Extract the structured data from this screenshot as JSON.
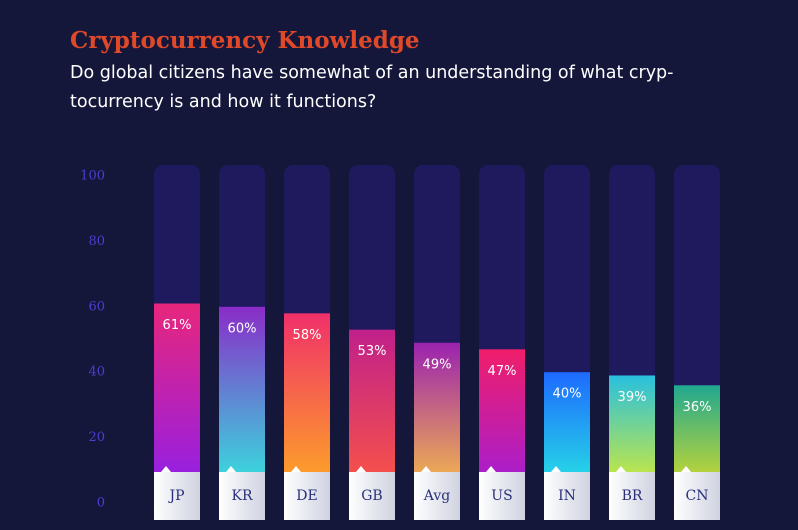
{
  "chart_data": {
    "type": "bar",
    "title": "Cryptocurrency Knowledge",
    "subtitle": [
      "Do global citizens have somewhat of an understanding of what cryp-",
      "tocurrency is and how it functions?"
    ],
    "categories": [
      "JP",
      "KR",
      "DE",
      "GB",
      "Avg",
      "US",
      "IN",
      "BR",
      "CN"
    ],
    "values": [
      61,
      60,
      58,
      53,
      49,
      47,
      40,
      39,
      36
    ],
    "value_labels": [
      "61%",
      "60%",
      "58%",
      "53%",
      "49%",
      "47%",
      "40%",
      "39%",
      "36%"
    ],
    "colors": [
      [
        "#e8267c",
        "#8a1ef0"
      ],
      [
        "#8a2cc8",
        "#2ef0e0"
      ],
      [
        "#f0306a",
        "#ffb020"
      ],
      [
        "#c0208a",
        "#ff5a40"
      ],
      [
        "#9a22b0",
        "#ffc840"
      ],
      [
        "#f01e6a",
        "#9a1ee0"
      ],
      [
        "#1e6aff",
        "#28f0e0"
      ],
      [
        "#28c0e0",
        "#e8f020"
      ],
      [
        "#20a890",
        "#e8e020"
      ]
    ],
    "ylim": [
      0,
      100
    ],
    "yticks": [
      0,
      20,
      40,
      60,
      80,
      100
    ]
  }
}
